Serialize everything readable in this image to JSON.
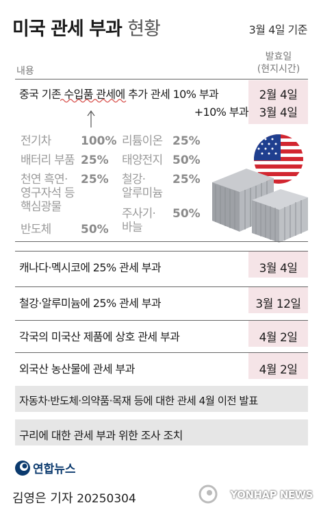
{
  "header": {
    "title_bold": "미국 관세 부과",
    "title_light": "현황",
    "date": "3월 4일 기준"
  },
  "table_head": {
    "content": "내용",
    "announce_line1": "발효일",
    "announce_line2": "(현지시간)"
  },
  "china": {
    "line1": "중국 기존 수입품 관세에 추가 관세 10% 부과",
    "line2": "+10% 부과",
    "date1": "2월 4일",
    "date2": "3월 4일"
  },
  "existing_items": [
    {
      "name": "전기차",
      "pct": "100%"
    },
    {
      "name": "배터리 부품",
      "pct": "25%"
    },
    {
      "name": "천연 흑연·\n영구자석 등\n핵심광물",
      "pct": "25%"
    },
    {
      "name": "반도체",
      "pct": "50%"
    },
    {
      "name": "리튬이온",
      "pct": "25%"
    },
    {
      "name": "태양전지",
      "pct": "50%"
    },
    {
      "name": "철강·\n알루미늄",
      "pct": "25%"
    },
    {
      "name": "주사기·\n바늘",
      "pct": "50%"
    }
  ],
  "rows": [
    {
      "text": "캐나다·멕시코에 25% 관세 부과",
      "date": "3월 4일"
    },
    {
      "text": "철강·알루미늄에 25% 관세 부과",
      "date": "3월 12일"
    },
    {
      "text": "각국의 미국산 제품에 상호 관세 부과",
      "date": "4월 2일"
    },
    {
      "text": "외국산 농산물에 관세 부과",
      "date": "4월 2일"
    }
  ],
  "notes": [
    "자동차·반도체·의약품·목재 등에 대한 관세 4월 이전 발표",
    "구리에 대한 관세 부과 위한 조사 조치"
  ],
  "footer": {
    "logo": "연합뉴스",
    "byline": "김영은 기자",
    "byline_date": "20250304",
    "watermark": "YONHAP NEWS"
  },
  "colors": {
    "date_cell": "#f5e4e7",
    "note_band": "#e6e6e6",
    "brand": "#0b3a6e"
  }
}
